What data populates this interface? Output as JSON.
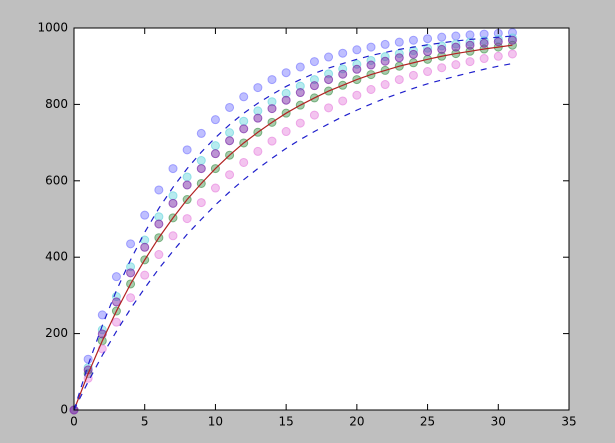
{
  "chart_data": {
    "type": "scatter",
    "x": [
      0,
      1,
      2,
      3,
      4,
      5,
      6,
      7,
      8,
      9,
      10,
      11,
      12,
      13,
      14,
      15,
      16,
      17,
      18,
      19,
      20,
      21,
      22,
      23,
      24,
      25,
      26,
      27,
      28,
      29,
      30,
      31
    ],
    "series": [
      {
        "style": "points",
        "color": "#8080ff",
        "values": [
          0,
          133,
          249,
          349,
          435,
          510,
          576,
          632,
          681,
          724,
          760,
          792,
          820,
          844,
          865,
          883,
          898,
          912,
          924,
          934,
          943,
          950,
          957,
          963,
          968,
          972,
          976,
          979,
          982,
          984,
          986,
          988
        ]
      },
      {
        "style": "points",
        "color": "#70d8e0",
        "values": [
          0,
          111,
          210,
          297,
          375,
          445,
          506,
          561,
          610,
          653,
          692,
          726,
          756,
          783,
          807,
          829,
          848,
          865,
          880,
          893,
          905,
          915,
          925,
          933,
          941,
          947,
          953,
          958,
          963,
          967,
          971,
          974
        ]
      },
      {
        "style": "points",
        "color": "#4f9a5a",
        "values": [
          0,
          95,
          181,
          259,
          330,
          393,
          451,
          503,
          551,
          593,
          632,
          667,
          699,
          727,
          753,
          777,
          798,
          817,
          835,
          850,
          865,
          878,
          889,
          900,
          909,
          918,
          926,
          933,
          939,
          945,
          950,
          955
        ]
      },
      {
        "style": "points",
        "color": "#e88ae0",
        "values": [
          0,
          83,
          160,
          230,
          294,
          353,
          407,
          456,
          501,
          543,
          581,
          616,
          648,
          677,
          704,
          729,
          751,
          772,
          791,
          809,
          824,
          839,
          852,
          865,
          876,
          886,
          896,
          904,
          912,
          920,
          926,
          932
        ]
      },
      {
        "style": "points",
        "color": "#7a2aa8",
        "values": [
          0,
          105,
          199,
          283,
          359,
          426,
          487,
          541,
          589,
          632,
          671,
          705,
          736,
          764,
          789,
          811,
          831,
          849,
          865,
          879,
          892,
          903,
          913,
          922,
          931,
          938,
          944,
          950,
          955,
          960,
          964,
          968
        ]
      },
      {
        "style": "line",
        "dash": "solid",
        "color": "#b22222",
        "values": [
          0,
          95,
          181,
          259,
          330,
          393,
          451,
          503,
          551,
          593,
          632,
          667,
          699,
          727,
          753,
          777,
          798,
          817,
          835,
          850,
          865,
          878,
          889,
          900,
          909,
          918,
          926,
          933,
          939,
          945,
          950,
          955
        ]
      },
      {
        "style": "line",
        "dash": "dashed",
        "color": "#1f1fcc",
        "values": [
          0,
          118,
          221,
          313,
          393,
          465,
          528,
          583,
          632,
          675,
          713,
          747,
          777,
          803,
          826,
          847,
          865,
          881,
          895,
          907,
          918,
          928,
          936,
          944,
          950,
          956,
          961,
          966,
          970,
          973,
          976,
          979
        ]
      },
      {
        "style": "line",
        "dash": "dashed",
        "color": "#1f1fcc",
        "values": [
          0,
          74,
          143,
          206,
          265,
          319,
          370,
          416,
          460,
          499,
          537,
          571,
          603,
          632,
          659,
          685,
          708,
          729,
          749,
          768,
          785,
          801,
          816,
          829,
          842,
          854,
          864,
          874,
          883,
          892,
          900,
          907
        ]
      }
    ],
    "xlim": [
      0,
      35
    ],
    "xticks": [
      0,
      5,
      10,
      15,
      20,
      25,
      30,
      35
    ],
    "ylim": [
      0,
      1000
    ],
    "yticks": [
      0,
      200,
      400,
      600,
      800,
      1000
    ],
    "grid": false
  }
}
